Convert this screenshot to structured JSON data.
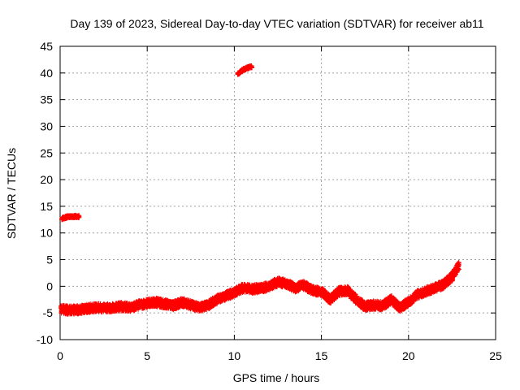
{
  "chart_data": {
    "type": "scatter",
    "title": "Day 139 of 2023, Sidereal Day-to-day VTEC variation (SDTVAR) for receiver ab11",
    "xlabel": "GPS time / hours",
    "ylabel": "SDTVAR / TECUs",
    "xlim": [
      0,
      25
    ],
    "ylim": [
      -10,
      45
    ],
    "xticks": [
      0,
      5,
      10,
      15,
      20,
      25
    ],
    "yticks": [
      -10,
      -5,
      0,
      5,
      10,
      15,
      20,
      25,
      30,
      35,
      40,
      45
    ],
    "grid": true,
    "marker": "+",
    "color": "#ff0000",
    "series": [
      {
        "name": "SDTVAR",
        "trend": [
          [
            0.05,
            -4.3
          ],
          [
            0.5,
            -4.5
          ],
          [
            1.0,
            -4.4
          ],
          [
            1.5,
            -4.2
          ],
          [
            2.0,
            -4.0
          ],
          [
            2.5,
            -4.1
          ],
          [
            3.0,
            -4.0
          ],
          [
            3.5,
            -3.8
          ],
          [
            4.0,
            -4.0
          ],
          [
            4.5,
            -3.5
          ],
          [
            5.0,
            -3.2
          ],
          [
            5.5,
            -3.0
          ],
          [
            6.0,
            -3.3
          ],
          [
            6.5,
            -3.6
          ],
          [
            7.0,
            -3.0
          ],
          [
            7.5,
            -3.5
          ],
          [
            8.0,
            -4.0
          ],
          [
            8.5,
            -3.5
          ],
          [
            9.0,
            -2.5
          ],
          [
            9.5,
            -1.8
          ],
          [
            10.0,
            -1.2
          ],
          [
            10.5,
            -0.3
          ],
          [
            11.0,
            -0.5
          ],
          [
            11.5,
            -0.4
          ],
          [
            12.0,
            0.0
          ],
          [
            12.5,
            0.8
          ],
          [
            13.0,
            0.5
          ],
          [
            13.5,
            -0.3
          ],
          [
            14.0,
            0.2
          ],
          [
            14.5,
            -0.8
          ],
          [
            15.0,
            -1.0
          ],
          [
            15.5,
            -2.5
          ],
          [
            16.0,
            -1.0
          ],
          [
            16.5,
            -0.8
          ],
          [
            17.0,
            -2.5
          ],
          [
            17.5,
            -3.8
          ],
          [
            18.0,
            -3.5
          ],
          [
            18.5,
            -3.7
          ],
          [
            19.0,
            -2.5
          ],
          [
            19.5,
            -4.0
          ],
          [
            20.0,
            -3.0
          ],
          [
            20.5,
            -1.5
          ],
          [
            21.0,
            -1.0
          ],
          [
            21.5,
            -0.3
          ],
          [
            22.0,
            0.3
          ],
          [
            22.5,
            1.8
          ],
          [
            22.9,
            3.8
          ]
        ],
        "segments": [
          [
            [
              0.1,
              12.7
            ],
            [
              0.4,
              13.0
            ],
            [
              0.8,
              13.1
            ],
            [
              1.1,
              13.1
            ]
          ],
          [
            [
              10.2,
              39.8
            ],
            [
              10.5,
              40.6
            ],
            [
              10.8,
              41.0
            ],
            [
              11.0,
              41.2
            ]
          ]
        ]
      }
    ]
  }
}
